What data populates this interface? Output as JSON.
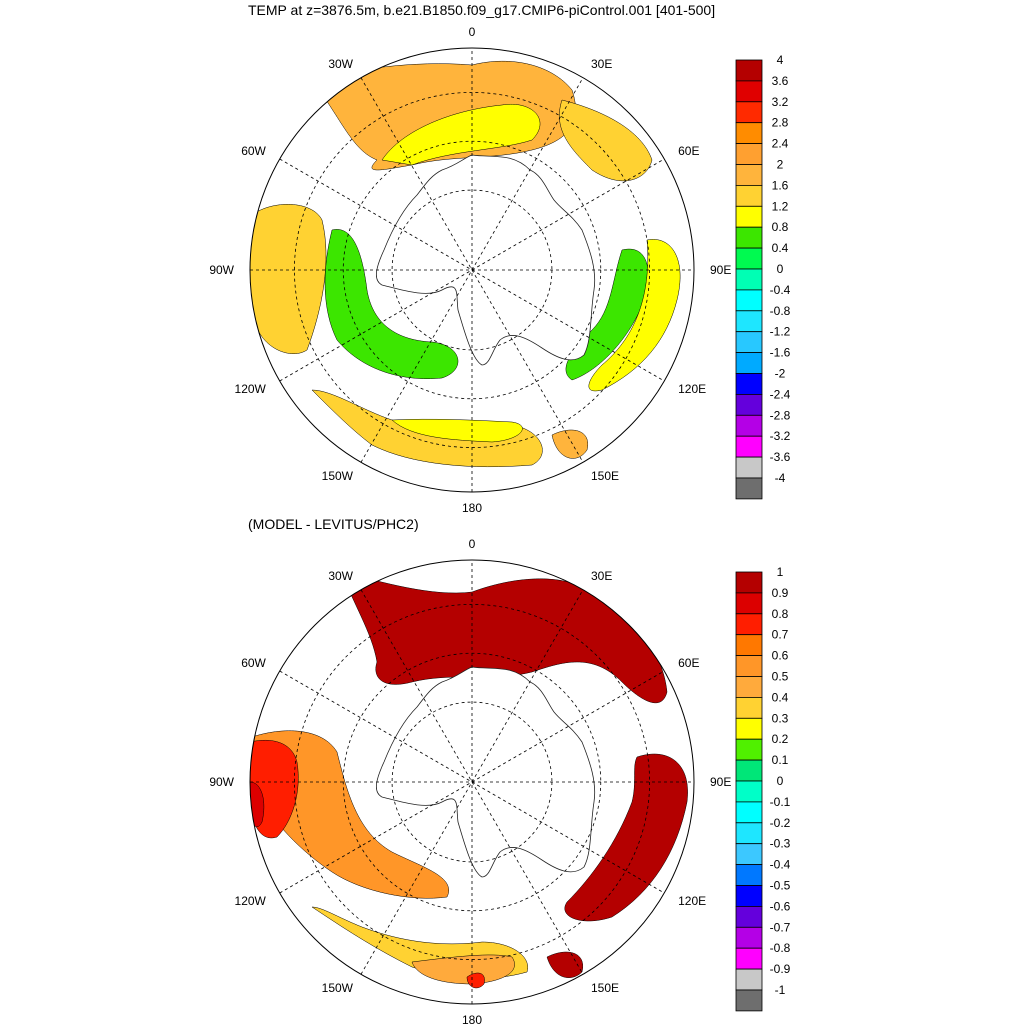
{
  "top_panel": {
    "title": "TEMP at z=3876.5m, b.e21.B1850.f09_g17.CMIP6-piControl.001 [401-500]",
    "lon_labels": [
      "0",
      "30E",
      "60E",
      "90E",
      "120E",
      "150E",
      "180",
      "150W",
      "120W",
      "90W",
      "60W",
      "30W"
    ],
    "colorbar": {
      "labels": [
        "4",
        "3.6",
        "3.2",
        "2.8",
        "2.4",
        "2",
        "1.6",
        "1.2",
        "0.8",
        "0.4",
        "0",
        "-0.4",
        "-0.8",
        "-1.2",
        "-1.6",
        "-2",
        "-2.4",
        "-2.8",
        "-3.2",
        "-3.6",
        "-4"
      ],
      "colors": [
        "#b40000",
        "#e00000",
        "#ff2a00",
        "#ff8c00",
        "#ffa030",
        "#ffb43c",
        "#ffd232",
        "#ffff00",
        "#3ce600",
        "#00fa50",
        "#00ffb4",
        "#00ffff",
        "#1ee6ff",
        "#28c8ff",
        "#00aaff",
        "#0000ff",
        "#6400dc",
        "#b400e6",
        "#ff00ff",
        "#c8c8c8",
        "#6e6e6e"
      ]
    }
  },
  "bottom_panel": {
    "title": "(MODEL - LEVITUS/PHC2)",
    "lon_labels": [
      "0",
      "30E",
      "60E",
      "90E",
      "120E",
      "150E",
      "180",
      "150W",
      "120W",
      "90W",
      "60W",
      "30W"
    ],
    "colorbar": {
      "labels": [
        "1",
        "0.9",
        "0.8",
        "0.7",
        "0.6",
        "0.5",
        "0.4",
        "0.3",
        "0.2",
        "0.1",
        "0",
        "-0.1",
        "-0.2",
        "-0.3",
        "-0.4",
        "-0.5",
        "-0.6",
        "-0.7",
        "-0.8",
        "-0.9",
        "-1"
      ],
      "colors": [
        "#b40000",
        "#dc0000",
        "#ff1e00",
        "#ff7800",
        "#ff9628",
        "#ffaa3c",
        "#ffd232",
        "#ffff00",
        "#50f000",
        "#00e678",
        "#00ffc8",
        "#00ffff",
        "#1ee6ff",
        "#3cc8ff",
        "#0078ff",
        "#0000ff",
        "#6400dc",
        "#b400e6",
        "#ff00ff",
        "#c8c8c8",
        "#6e6e6e"
      ]
    }
  }
}
